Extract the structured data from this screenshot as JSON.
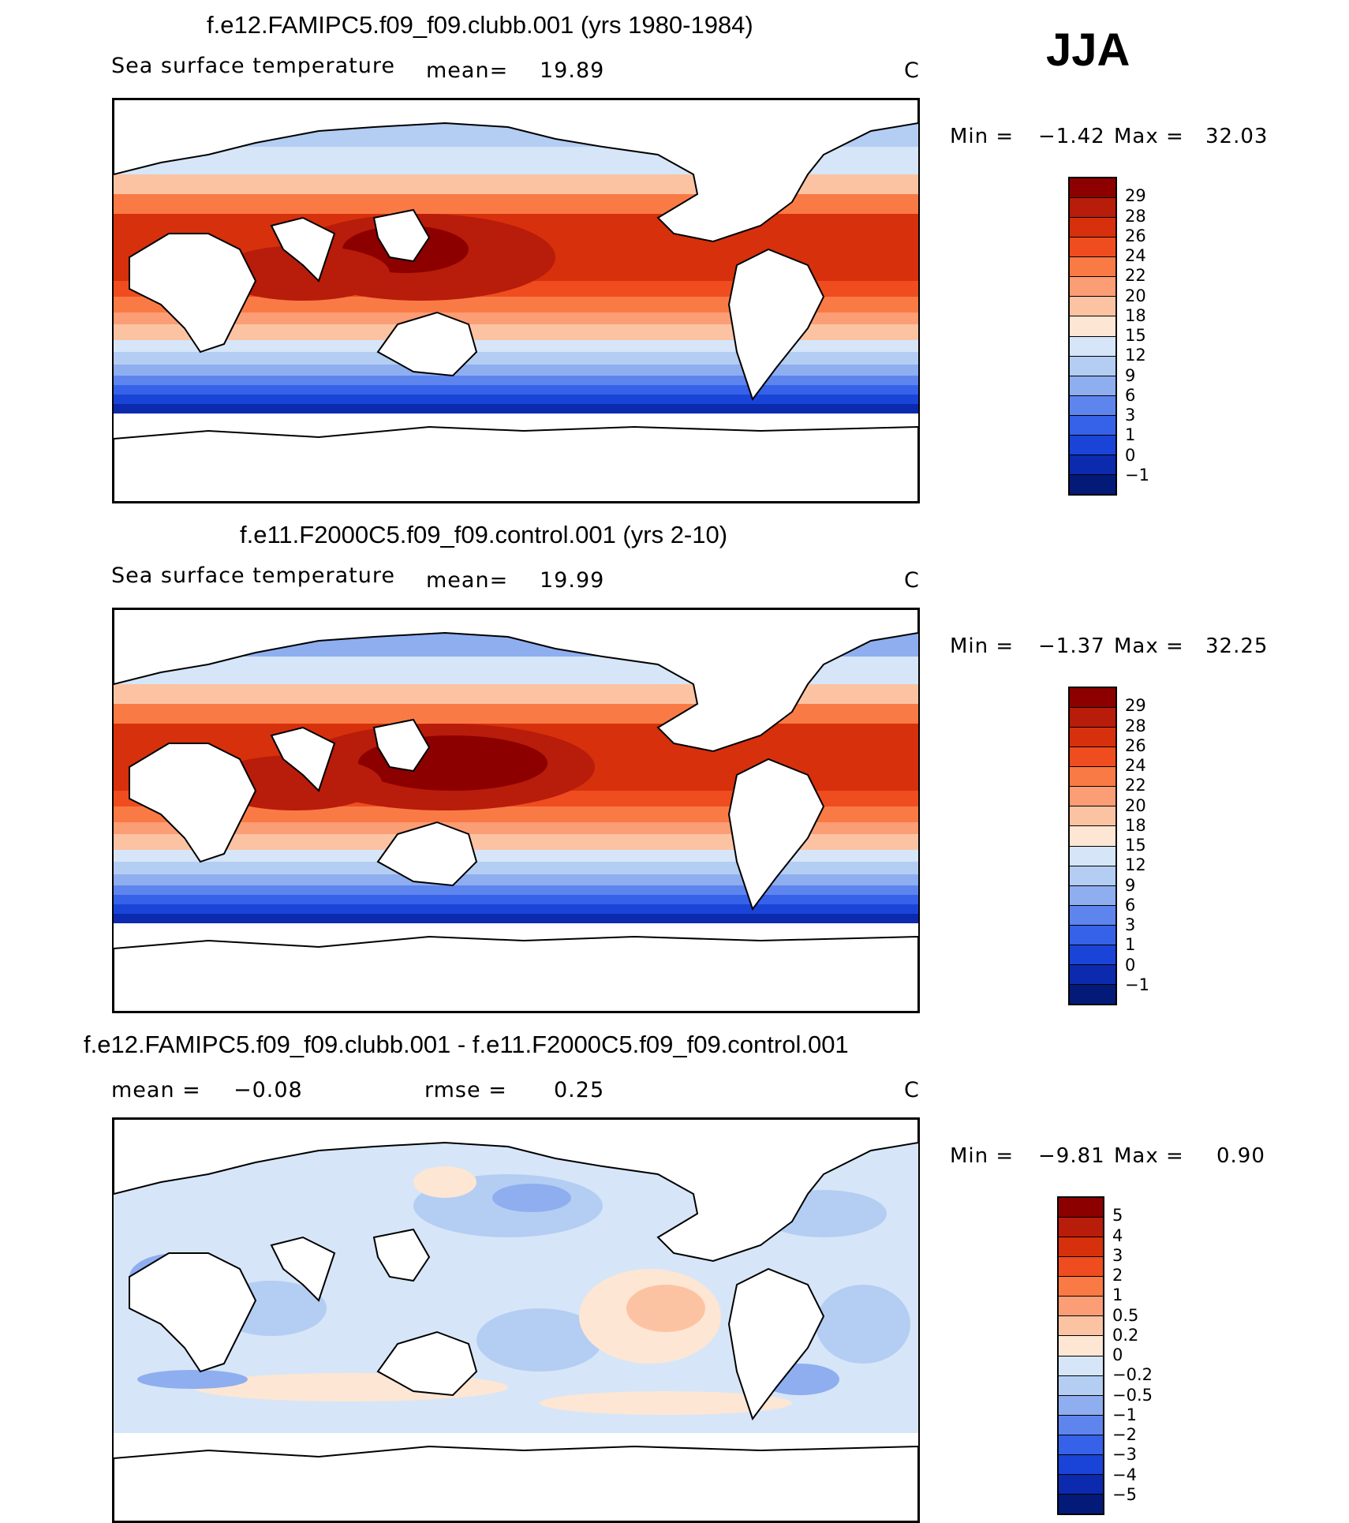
{
  "season": "JJA",
  "panels": [
    {
      "title": "f.e12.FAMIPC5.f09_f09.clubb.001 (yrs 1980-1984)",
      "field_label": "Sea surface temperature",
      "mean_label": "mean=",
      "mean_value": "19.89",
      "units": "C",
      "min_label": "Min =",
      "min_value": "−1.42",
      "max_label": "Max =",
      "max_value": "32.03",
      "colorbar_levels": [
        "29",
        "28",
        "26",
        "24",
        "22",
        "20",
        "18",
        "15",
        "12",
        "9",
        "6",
        "3",
        "1",
        "0",
        "−1"
      ],
      "colorbar_colors": [
        "#8c0000",
        "#b81c0a",
        "#d7300c",
        "#ef4d1f",
        "#fa7a45",
        "#fb9d75",
        "#fcc3a3",
        "#fde6d3",
        "#d6e6f8",
        "#b4cdf2",
        "#8eaef0",
        "#5e85ee",
        "#3562e8",
        "#1a44d8",
        "#0c2aae",
        "#041a78"
      ]
    },
    {
      "title": "f.e11.F2000C5.f09_f09.control.001 (yrs 2-10)",
      "field_label": "Sea surface temperature",
      "mean_label": "mean=",
      "mean_value": "19.99",
      "units": "C",
      "min_label": "Min =",
      "min_value": "−1.37",
      "max_label": "Max =",
      "max_value": "32.25",
      "colorbar_levels": [
        "29",
        "28",
        "26",
        "24",
        "22",
        "20",
        "18",
        "15",
        "12",
        "9",
        "6",
        "3",
        "1",
        "0",
        "−1"
      ],
      "colorbar_colors": [
        "#8c0000",
        "#b81c0a",
        "#d7300c",
        "#ef4d1f",
        "#fa7a45",
        "#fb9d75",
        "#fcc3a3",
        "#fde6d3",
        "#d6e6f8",
        "#b4cdf2",
        "#8eaef0",
        "#5e85ee",
        "#3562e8",
        "#1a44d8",
        "#0c2aae",
        "#041a78"
      ]
    },
    {
      "title": "f.e12.FAMIPC5.f09_f09.clubb.001 - f.e11.F2000C5.f09_f09.control.001",
      "mean_label": "mean =",
      "mean_value": "−0.08",
      "rmse_label": "rmse =",
      "rmse_value": "0.25",
      "units": "C",
      "min_label": "Min =",
      "min_value": "−9.81",
      "max_label": "Max =",
      "max_value": "0.90",
      "colorbar_levels": [
        "5",
        "4",
        "3",
        "2",
        "1",
        "0.5",
        "0.2",
        "0",
        "−0.2",
        "−0.5",
        "−1",
        "−2",
        "−3",
        "−4",
        "−5"
      ],
      "colorbar_colors": [
        "#8c0000",
        "#b81c0a",
        "#d7300c",
        "#ef4d1f",
        "#fa7a45",
        "#fb9d75",
        "#fcc3a3",
        "#fde6d3",
        "#d6e6f8",
        "#b4cdf2",
        "#8eaef0",
        "#5e85ee",
        "#3562e8",
        "#1a44d8",
        "#0c2aae",
        "#041a78"
      ]
    }
  ]
}
